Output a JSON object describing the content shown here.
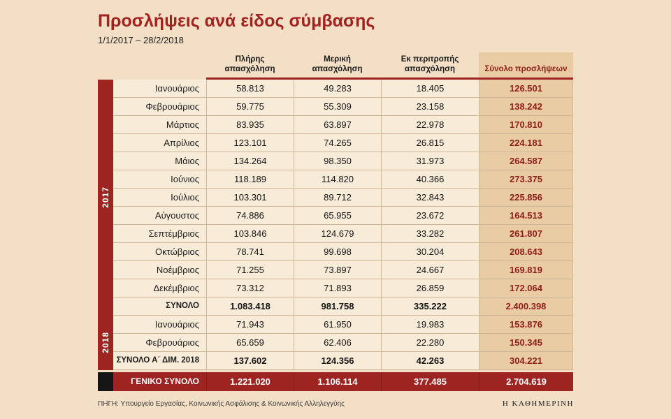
{
  "colors": {
    "page_bg": "#f2dfc6",
    "accent_red": "#9d2420",
    "cell_bg": "#f8ecd9",
    "total_col_bg": "#e9cca3",
    "total_text_red": "#8e1d1a",
    "grid_line": "#cfb897",
    "black_block": "#161616",
    "grand_row_text": "#ffffff"
  },
  "chart_data": {
    "type": "table",
    "title": "Προσλήψεις ανά είδος σύμβασης",
    "subtitle": "1/1/2017 – 28/2/2018",
    "columns": [
      "Πλήρης απασχόληση",
      "Μερική απασχόληση",
      "Εκ περιτροπής απασχόληση",
      "Σύνολο προσλήψεων"
    ],
    "groups": [
      {
        "year": "2017",
        "rows": [
          {
            "label": "Ιανουάριος",
            "values": [
              "58.813",
              "49.283",
              "18.405",
              "126.501"
            ]
          },
          {
            "label": "Φεβρουάριος",
            "values": [
              "59.775",
              "55.309",
              "23.158",
              "138.242"
            ]
          },
          {
            "label": "Μάρτιος",
            "values": [
              "83.935",
              "63.897",
              "22.978",
              "170.810"
            ]
          },
          {
            "label": "Απρίλιος",
            "values": [
              "123.101",
              "74.265",
              "26.815",
              "224.181"
            ]
          },
          {
            "label": "Μάιος",
            "values": [
              "134.264",
              "98.350",
              "31.973",
              "264.587"
            ]
          },
          {
            "label": "Ιούνιος",
            "values": [
              "118.189",
              "114.820",
              "40.366",
              "273.375"
            ]
          },
          {
            "label": "Ιούλιος",
            "values": [
              "103.301",
              "89.712",
              "32.843",
              "225.856"
            ]
          },
          {
            "label": "Αύγουστος",
            "values": [
              "74.886",
              "65.955",
              "23.672",
              "164.513"
            ]
          },
          {
            "label": "Σεπτέμβριος",
            "values": [
              "103.846",
              "124.679",
              "33.282",
              "261.807"
            ]
          },
          {
            "label": "Οκτώβριος",
            "values": [
              "78.741",
              "99.698",
              "30.204",
              "208.643"
            ]
          },
          {
            "label": "Νοέμβριος",
            "values": [
              "71.255",
              "73.897",
              "24.667",
              "169.819"
            ]
          },
          {
            "label": "Δεκέμβριος",
            "values": [
              "73.312",
              "71.893",
              "26.859",
              "172.064"
            ]
          }
        ],
        "total_row": {
          "label": "ΣΥΝΟΛΟ",
          "values": [
            "1.083.418",
            "981.758",
            "335.222",
            "2.400.398"
          ]
        }
      },
      {
        "year": "2018",
        "rows": [
          {
            "label": "Ιανουάριος",
            "values": [
              "71.943",
              "61.950",
              "19.983",
              "153.876"
            ]
          },
          {
            "label": "Φεβρουάριος",
            "values": [
              "65.659",
              "62.406",
              "22.280",
              "150.345"
            ]
          }
        ],
        "total_row": {
          "label": "ΣΥΝΟΛΟ Α΄ ΔΙΜ. 2018",
          "values": [
            "137.602",
            "124.356",
            "42.263",
            "304.221"
          ]
        }
      }
    ],
    "grand_total": {
      "label": "ΓΕΝΙΚΟ ΣΥΝΟΛΟ",
      "values": [
        "1.221.020",
        "1.106.114",
        "377.485",
        "2.704.619"
      ]
    },
    "source": "ΠΗΓΗ: Υπουργείο Εργασίας, Κοινωνικής Ασφάλισης & Κοινωνικής Αλληλεγγύης",
    "credit": "Η ΚΑΘΗΜΕΡΙΝΗ"
  }
}
